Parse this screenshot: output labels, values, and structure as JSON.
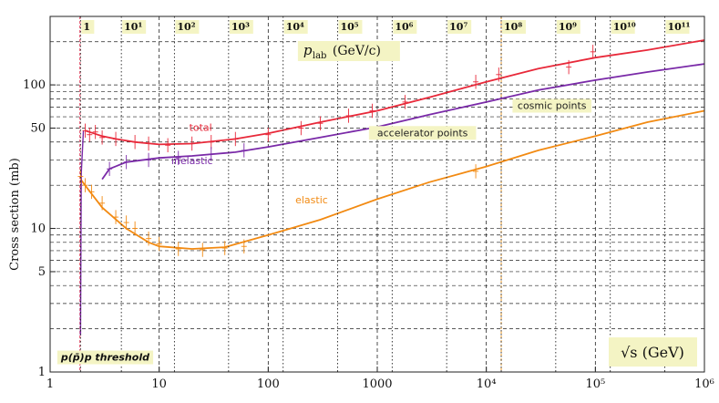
{
  "chart_data": {
    "type": "line",
    "title": "",
    "xlabel": "√s (GeV)",
    "ylabel": "Cross section (mb)",
    "x_scale": "log",
    "y_scale": "log",
    "xlim": [
      1,
      1000000
    ],
    "ylim": [
      1,
      300
    ],
    "grid": true,
    "x_ticks": [
      {
        "value": 1,
        "label": "1"
      },
      {
        "value": 10,
        "label": "10"
      },
      {
        "value": 100,
        "label": "100"
      },
      {
        "value": 1000,
        "label": "1000"
      },
      {
        "value": 10000,
        "label": "10⁴"
      },
      {
        "value": 100000,
        "label": "10⁵"
      },
      {
        "value": 1000000,
        "label": "10⁶"
      }
    ],
    "y_ticks": [
      {
        "value": 1,
        "label": "1"
      },
      {
        "value": 5,
        "label": "5"
      },
      {
        "value": 10,
        "label": "10"
      },
      {
        "value": 50,
        "label": "50"
      },
      {
        "value": 100,
        "label": "100"
      }
    ],
    "top_axis": {
      "label": "p_lab (GeV/c)",
      "label_main": "p",
      "label_sub": "lab",
      "label_unit": "(GeV/c)",
      "ticks": [
        {
          "plab": 1,
          "sqrt_s": 1.9,
          "label": "1"
        },
        {
          "plab": 10,
          "sqrt_s": 4.5,
          "label": "10¹"
        },
        {
          "plab": 100,
          "sqrt_s": 13.8,
          "label": "10²"
        },
        {
          "plab": 1000,
          "sqrt_s": 43.3,
          "label": "10³"
        },
        {
          "plab": 10000,
          "sqrt_s": 137,
          "label": "10⁴"
        },
        {
          "plab": 100000,
          "sqrt_s": 433,
          "label": "10⁵"
        },
        {
          "plab": 1000000,
          "sqrt_s": 1370,
          "label": "10⁶"
        },
        {
          "plab": 10000000,
          "sqrt_s": 4330,
          "label": "10⁷"
        },
        {
          "plab": 100000000,
          "sqrt_s": 13700,
          "label": "10⁸"
        },
        {
          "plab": 1000000000,
          "sqrt_s": 43300,
          "label": "10⁹"
        },
        {
          "plab": 10000000000,
          "sqrt_s": 137000,
          "label": "10¹⁰"
        },
        {
          "plab": 100000000000,
          "sqrt_s": 433000,
          "label": "10¹¹"
        }
      ]
    },
    "series": [
      {
        "name": "total",
        "color": "#e8293a",
        "points": [
          [
            2.1,
            48
          ],
          [
            2.5,
            46
          ],
          [
            3,
            44
          ],
          [
            4,
            42
          ],
          [
            6,
            40
          ],
          [
            10,
            38.5
          ],
          [
            20,
            39
          ],
          [
            50,
            42
          ],
          [
            100,
            46
          ],
          [
            300,
            55
          ],
          [
            1000,
            66
          ],
          [
            3000,
            82
          ],
          [
            10000,
            105
          ],
          [
            30000,
            130
          ],
          [
            100000,
            155
          ],
          [
            300000,
            175
          ],
          [
            1000000,
            205
          ]
        ]
      },
      {
        "name": "inelastic",
        "color": "#7a2aa8",
        "points": [
          [
            3,
            22
          ],
          [
            3.5,
            26
          ],
          [
            5,
            29
          ],
          [
            10,
            31
          ],
          [
            20,
            32
          ],
          [
            50,
            34
          ],
          [
            100,
            37
          ],
          [
            300,
            43
          ],
          [
            1000,
            51
          ],
          [
            3000,
            62
          ],
          [
            10000,
            76
          ],
          [
            30000,
            92
          ],
          [
            100000,
            108
          ],
          [
            300000,
            123
          ],
          [
            1000000,
            140
          ]
        ]
      },
      {
        "name": "elastic",
        "color": "#f28a12",
        "points": [
          [
            1.9,
            22
          ],
          [
            2.2,
            19
          ],
          [
            3,
            14
          ],
          [
            5,
            10
          ],
          [
            8,
            8
          ],
          [
            10,
            7.5
          ],
          [
            20,
            7.2
          ],
          [
            40,
            7.4
          ],
          [
            100,
            9
          ],
          [
            300,
            11.5
          ],
          [
            1000,
            16
          ],
          [
            3000,
            21
          ],
          [
            10000,
            27
          ],
          [
            30000,
            35
          ],
          [
            100000,
            44
          ],
          [
            300000,
            55
          ],
          [
            1000000,
            66
          ]
        ]
      }
    ],
    "data_points": {
      "total": [
        [
          2.1,
          48
        ],
        [
          2.3,
          45
        ],
        [
          2.6,
          47
        ],
        [
          3,
          43
        ],
        [
          4,
          42
        ],
        [
          6,
          40
        ],
        [
          8,
          39
        ],
        [
          12,
          38
        ],
        [
          20,
          39
        ],
        [
          30,
          40
        ],
        [
          50,
          42
        ],
        [
          100,
          45
        ],
        [
          200,
          50
        ],
        [
          300,
          54
        ],
        [
          546,
          61
        ],
        [
          900,
          66
        ],
        [
          1800,
          76
        ],
        [
          8000,
          105
        ],
        [
          13000,
          118
        ],
        [
          57000,
          133
        ],
        [
          95000,
          170
        ]
      ],
      "inelastic": [
        [
          3.5,
          26
        ],
        [
          5,
          29
        ],
        [
          8,
          30
        ],
        [
          15,
          31
        ],
        [
          30,
          33
        ],
        [
          60,
          35
        ]
      ],
      "elastic": [
        [
          1.9,
          23
        ],
        [
          2.1,
          20
        ],
        [
          2.4,
          18
        ],
        [
          3,
          15
        ],
        [
          4,
          12
        ],
        [
          5,
          11
        ],
        [
          6,
          10
        ],
        [
          8,
          8.5
        ],
        [
          10,
          7.8
        ],
        [
          15,
          7.2
        ],
        [
          25,
          7.1
        ],
        [
          40,
          7.3
        ],
        [
          60,
          7.5
        ],
        [
          8000,
          25
        ]
      ]
    },
    "annotations": [
      {
        "text": "total",
        "x": 24,
        "y": 48,
        "color": "#e8293a",
        "highlight": false
      },
      {
        "text": "inelastic",
        "x": 20,
        "y": 28,
        "color": "#7a2aa8",
        "highlight": false
      },
      {
        "text": "elastic",
        "x": 250,
        "y": 15,
        "color": "#f28a12",
        "highlight": false
      },
      {
        "text": "accelerator points",
        "x": 2600,
        "y": 44,
        "color": "#222",
        "highlight": true
      },
      {
        "text": "cosmic points",
        "x": 40000,
        "y": 68,
        "color": "#222",
        "highlight": true
      },
      {
        "text": "p(p̄)p threshold",
        "x": 3.2,
        "y": 1.2,
        "color": "#111",
        "highlight": true
      }
    ],
    "vertical_lines": [
      {
        "x": 1.88,
        "color": "#e0294a",
        "label": "threshold"
      },
      {
        "x": 13700,
        "color": "#f2a030",
        "label": "p_lab 10⁸"
      }
    ]
  }
}
